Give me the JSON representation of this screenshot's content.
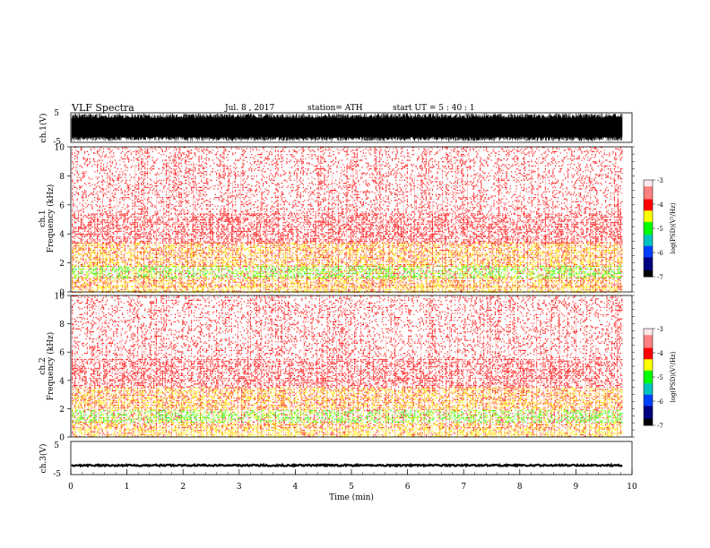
{
  "header": {
    "title": "VLF  Spectra",
    "date": "Jul.  8  , 2017",
    "station": "station= ATH",
    "start": "start  UT  =    5  : 40 : 1"
  },
  "colors": {
    "trace": "#000000",
    "axis": "#000000",
    "background": "#ffffff"
  },
  "chart_data": [
    {
      "type": "line",
      "id": "ch1-waveform",
      "ylabel": "ch.1(V)",
      "ylim": [
        -5,
        5
      ],
      "yticks": [
        "5",
        "-5"
      ],
      "x_range_min": [
        0,
        9.83
      ],
      "description_values": "dense broadband waveform spanning nearly the full -5..5 V range"
    },
    {
      "type": "heatmap",
      "id": "ch1-spectrogram",
      "ylabel": "ch.1\nFrequency  (kHz)",
      "ylabel_lines": [
        "ch.1",
        "Frequency  (kHz)"
      ],
      "ylim": [
        0,
        10
      ],
      "yticks": [
        "0",
        "2",
        "4",
        "6",
        "8",
        "10"
      ],
      "x_range_min": [
        0,
        9.83
      ],
      "colorbar": {
        "label": "log(PSD)(V²/Hz)",
        "range": [
          -7,
          -3
        ],
        "ticks": [
          "-3",
          "-4",
          "-5",
          "-6",
          "-7"
        ]
      },
      "bands": [
        {
          "f": [
            0,
            0.4
          ],
          "level": "yellow"
        },
        {
          "f": [
            0.4,
            1.0
          ],
          "level": "yellow-red"
        },
        {
          "f": [
            1.0,
            1.8
          ],
          "level": "green"
        },
        {
          "f": [
            1.8,
            3.4
          ],
          "level": "yellow-red"
        },
        {
          "f": [
            3.4,
            5.4
          ],
          "level": "red"
        },
        {
          "f": [
            5.4,
            10
          ],
          "level": "sparse-red"
        }
      ]
    },
    {
      "type": "heatmap",
      "id": "ch2-spectrogram",
      "ylabel": "ch.2\nFrequency  (kHz)",
      "ylabel_lines": [
        "ch.2",
        "Frequency  (kHz)"
      ],
      "ylim": [
        0,
        10
      ],
      "yticks": [
        "0",
        "2",
        "4",
        "6",
        "8",
        "10"
      ],
      "x_range_min": [
        0,
        9.83
      ],
      "colorbar": {
        "label": "log(PSD)(V²/Hz)",
        "range": [
          -7,
          -3
        ],
        "ticks": [
          "-3",
          "-4",
          "-5",
          "-6",
          "-7"
        ]
      },
      "bands": [
        {
          "f": [
            0,
            0.6
          ],
          "level": "yellow"
        },
        {
          "f": [
            0.6,
            1.0
          ],
          "level": "yellow-red"
        },
        {
          "f": [
            1.0,
            1.9
          ],
          "level": "green"
        },
        {
          "f": [
            1.9,
            3.5
          ],
          "level": "yellow-red"
        },
        {
          "f": [
            3.5,
            5.5
          ],
          "level": "red"
        },
        {
          "f": [
            5.5,
            10
          ],
          "level": "sparse-red"
        }
      ]
    },
    {
      "type": "line",
      "id": "ch3-waveform",
      "ylabel": "ch.3(V)",
      "ylim": [
        -5,
        5
      ],
      "yticks": [
        "5",
        "-5"
      ],
      "x_range_min": [
        0,
        9.83
      ],
      "level": -2.2
    }
  ],
  "xaxis": {
    "label": "Time  (min)",
    "ticks": [
      "0",
      "1",
      "2",
      "3",
      "4",
      "5",
      "6",
      "7",
      "8",
      "9",
      "10"
    ],
    "xlim": [
      0,
      10
    ]
  }
}
